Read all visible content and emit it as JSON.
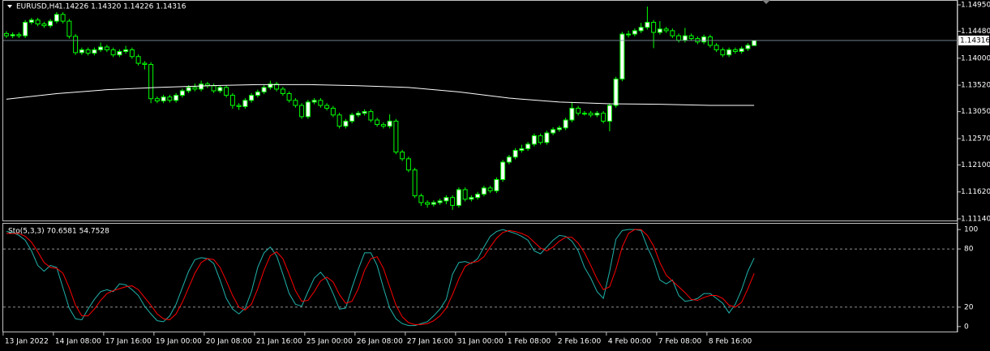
{
  "chart_data": {
    "type": "candlestick",
    "title": "EURUSD,H4",
    "ohlc_text": "1.14226 1.14320 1.14226 1.14316",
    "last_price": 1.14316,
    "up_color": "#ffffff",
    "down_color": "#000000",
    "outline_color": "#00ff00",
    "ylim": [
      1.11111,
      1.15008
    ],
    "yticks": [
      {
        "value": 1.1495,
        "label": "1.14950"
      },
      {
        "value": 1.1448,
        "label": "1.14480"
      },
      {
        "value": 1.14,
        "label": "1.14000"
      },
      {
        "value": 1.1352,
        "label": "1.13520"
      },
      {
        "value": 1.1305,
        "label": "1.13050"
      },
      {
        "value": 1.1257,
        "label": "1.12570"
      },
      {
        "value": 1.121,
        "label": "1.12100"
      },
      {
        "value": 1.1162,
        "label": "1.11620"
      },
      {
        "value": 1.1114,
        "label": "1.11140"
      }
    ],
    "categories": [
      "13 Jan 2022",
      null,
      null,
      null,
      null,
      null,
      null,
      null,
      "14 Jan 08:00",
      null,
      null,
      null,
      null,
      null,
      null,
      null,
      "17 Jan 16:00",
      null,
      null,
      null,
      null,
      null,
      null,
      null,
      "19 Jan 00:00",
      null,
      null,
      null,
      null,
      null,
      null,
      null,
      "20 Jan 08:00",
      null,
      null,
      null,
      null,
      null,
      null,
      null,
      "21 Jan 16:00",
      null,
      null,
      null,
      null,
      null,
      null,
      null,
      "25 Jan 00:00",
      null,
      null,
      null,
      null,
      null,
      null,
      null,
      "26 Jan 08:00",
      null,
      null,
      null,
      null,
      null,
      null,
      null,
      "27 Jan 16:00",
      null,
      null,
      null,
      null,
      null,
      null,
      null,
      "31 Jan 00:00",
      null,
      null,
      null,
      null,
      null,
      null,
      null,
      "1 Feb 08:00",
      null,
      null,
      null,
      null,
      null,
      null,
      null,
      "2 Feb 16:00",
      null,
      null,
      null,
      null,
      null,
      null,
      null,
      "4 Feb 00:00",
      null,
      null,
      null,
      null,
      null,
      null,
      null,
      "7 Feb 08:00",
      null,
      null,
      null,
      null,
      null,
      null,
      null,
      "8 Feb 16:00",
      null,
      null,
      null,
      null,
      null,
      null,
      null
    ],
    "open": [
      1.1444,
      1.144,
      1.1442,
      1.144,
      1.1464,
      1.1468,
      1.1461,
      1.1458,
      1.1466,
      1.1478,
      1.1466,
      1.1439,
      1.141,
      1.1415,
      1.1409,
      1.1415,
      1.142,
      1.1415,
      1.1406,
      1.1412,
      1.1415,
      1.1403,
      1.1391,
      1.1389,
      1.1328,
      1.1324,
      1.1331,
      1.1325,
      1.1334,
      1.1342,
      1.1348,
      1.1345,
      1.1354,
      1.1351,
      1.1342,
      1.1348,
      1.1334,
      1.1316,
      1.1314,
      1.1325,
      1.1334,
      1.134,
      1.1348,
      1.1354,
      1.1345,
      1.1337,
      1.1325,
      1.1316,
      1.1296,
      1.1322,
      1.1325,
      1.1316,
      1.1311,
      1.1299,
      1.1279,
      1.1288,
      1.1299,
      1.1302,
      1.1305,
      1.129,
      1.1282,
      1.1279,
      1.1288,
      1.1233,
      1.1221,
      1.1201,
      1.1155,
      1.1143,
      1.114,
      1.1143,
      1.1146,
      1.1152,
      1.1138,
      1.1166,
      1.1149,
      1.1152,
      1.1158,
      1.1169,
      1.1164,
      1.1184,
      1.1215,
      1.1224,
      1.1236,
      1.1239,
      1.1247,
      1.1262,
      1.125,
      1.1267,
      1.1273,
      1.1276,
      1.129,
      1.1311,
      1.1302,
      1.1302,
      1.1299,
      1.1302,
      1.1288,
      1.1316,
      1.1363,
      1.1443,
      1.1443,
      1.1449,
      1.1455,
      1.1464,
      1.1446,
      1.1452,
      1.1449,
      1.144,
      1.1432,
      1.144,
      1.1435,
      1.1429,
      1.1438,
      1.1423,
      1.1415,
      1.1406,
      1.1415,
      1.1412,
      1.1417,
      1.14226
    ],
    "high": [
      1.1448,
      1.1446,
      1.1446,
      1.1468,
      1.1472,
      1.1472,
      1.1465,
      1.147,
      1.1482,
      1.1482,
      1.147,
      1.1443,
      1.1419,
      1.1419,
      1.1419,
      1.1428,
      1.1424,
      1.1419,
      1.1416,
      1.1422,
      1.1419,
      1.1407,
      1.1395,
      1.1393,
      1.1332,
      1.1335,
      1.1335,
      1.1338,
      1.1346,
      1.1352,
      1.1355,
      1.136,
      1.1358,
      1.1355,
      1.1352,
      1.1352,
      1.1338,
      1.132,
      1.1329,
      1.1338,
      1.1344,
      1.1352,
      1.136,
      1.1358,
      1.1349,
      1.1341,
      1.1329,
      1.132,
      1.1326,
      1.1329,
      1.1329,
      1.132,
      1.1315,
      1.1303,
      1.1292,
      1.1303,
      1.1306,
      1.1309,
      1.1309,
      1.1294,
      1.1286,
      1.13,
      1.1292,
      1.1237,
      1.1225,
      1.1205,
      1.1159,
      1.1147,
      1.1147,
      1.115,
      1.1156,
      1.1156,
      1.117,
      1.117,
      1.1156,
      1.1162,
      1.1173,
      1.1173,
      1.1188,
      1.1219,
      1.1228,
      1.124,
      1.1246,
      1.1251,
      1.1266,
      1.1266,
      1.1271,
      1.1277,
      1.128,
      1.1294,
      1.1322,
      1.1315,
      1.1306,
      1.1306,
      1.1306,
      1.1306,
      1.132,
      1.1367,
      1.1447,
      1.1449,
      1.1453,
      1.1463,
      1.1492,
      1.1468,
      1.1466,
      1.1456,
      1.1453,
      1.1444,
      1.1454,
      1.1444,
      1.1439,
      1.1442,
      1.1442,
      1.1427,
      1.1419,
      1.1419,
      1.1419,
      1.1421,
      1.1427,
      1.1432
    ],
    "low": [
      1.1436,
      1.1436,
      1.1436,
      1.1436,
      1.146,
      1.1457,
      1.1454,
      1.1454,
      1.1462,
      1.1462,
      1.1435,
      1.1406,
      1.1406,
      1.1405,
      1.1405,
      1.1411,
      1.1411,
      1.1402,
      1.1402,
      1.1408,
      1.1399,
      1.1387,
      1.138,
      1.132,
      1.132,
      1.132,
      1.1321,
      1.1321,
      1.133,
      1.1338,
      1.1341,
      1.1341,
      1.1347,
      1.1338,
      1.1338,
      1.133,
      1.131,
      1.1308,
      1.131,
      1.1321,
      1.133,
      1.1336,
      1.1344,
      1.1341,
      1.1333,
      1.1321,
      1.1312,
      1.1292,
      1.1292,
      1.1318,
      1.1312,
      1.1307,
      1.1295,
      1.1275,
      1.1275,
      1.1284,
      1.1295,
      1.1298,
      1.1286,
      1.1278,
      1.1275,
      1.1275,
      1.1229,
      1.1217,
      1.1197,
      1.1151,
      1.1137,
      1.1134,
      1.1136,
      1.1139,
      1.114,
      1.113,
      1.1134,
      1.1145,
      1.1145,
      1.1148,
      1.1154,
      1.116,
      1.116,
      1.118,
      1.1211,
      1.122,
      1.1232,
      1.1235,
      1.1243,
      1.1246,
      1.1246,
      1.1263,
      1.1269,
      1.1272,
      1.1286,
      1.1298,
      1.1298,
      1.1295,
      1.1295,
      1.1284,
      1.127,
      1.1312,
      1.1359,
      1.1437,
      1.1439,
      1.1445,
      1.1451,
      1.1418,
      1.1442,
      1.1445,
      1.1436,
      1.1428,
      1.1428,
      1.1431,
      1.1425,
      1.1425,
      1.1419,
      1.1411,
      1.1402,
      1.1402,
      1.1408,
      1.1408,
      1.1413,
      1.14226
    ],
    "close": [
      1.144,
      1.1442,
      1.144,
      1.1464,
      1.1468,
      1.1461,
      1.1458,
      1.1466,
      1.1478,
      1.1466,
      1.1439,
      1.141,
      1.1415,
      1.1409,
      1.1415,
      1.142,
      1.1415,
      1.1406,
      1.1412,
      1.1415,
      1.1403,
      1.1391,
      1.1389,
      1.1328,
      1.1324,
      1.1331,
      1.1325,
      1.1334,
      1.1342,
      1.1348,
      1.1345,
      1.1354,
      1.1351,
      1.1342,
      1.1348,
      1.1334,
      1.1316,
      1.1314,
      1.1325,
      1.1334,
      1.134,
      1.1348,
      1.1354,
      1.1345,
      1.1337,
      1.1325,
      1.1316,
      1.1296,
      1.1322,
      1.1325,
      1.1316,
      1.1311,
      1.1299,
      1.1279,
      1.1288,
      1.1299,
      1.1302,
      1.1305,
      1.129,
      1.1282,
      1.1279,
      1.1288,
      1.1233,
      1.1221,
      1.1201,
      1.1155,
      1.1143,
      1.114,
      1.1143,
      1.1146,
      1.1152,
      1.1138,
      1.1166,
      1.1149,
      1.1152,
      1.1158,
      1.1169,
      1.1164,
      1.1184,
      1.1215,
      1.1224,
      1.1236,
      1.1239,
      1.1247,
      1.1262,
      1.125,
      1.1267,
      1.1273,
      1.1276,
      1.129,
      1.1311,
      1.1302,
      1.1302,
      1.1299,
      1.1302,
      1.1288,
      1.1316,
      1.1363,
      1.1443,
      1.1443,
      1.1449,
      1.1455,
      1.1464,
      1.1446,
      1.1452,
      1.1449,
      1.144,
      1.1432,
      1.144,
      1.1435,
      1.1429,
      1.1438,
      1.1423,
      1.1415,
      1.1406,
      1.1415,
      1.1412,
      1.1417,
      1.1423,
      1.14316
    ],
    "moving_average": {
      "color": "#ffffff",
      "index": [
        0,
        8,
        16,
        24,
        32,
        40,
        48,
        56,
        64,
        72,
        80,
        88,
        96,
        104,
        112,
        119
      ],
      "values": [
        1.1327,
        1.1337,
        1.1344,
        1.1348,
        1.1351,
        1.1353,
        1.1353,
        1.1351,
        1.1348,
        1.134,
        1.1329,
        1.1322,
        1.1319,
        1.1318,
        1.1316,
        1.1316
      ]
    },
    "indicator": {
      "label": "Sto(5,3,3) 70.6581 54.7528",
      "ylim": [
        -6,
        106
      ],
      "yticks": [
        0,
        20,
        80,
        100
      ],
      "levels": [
        20,
        80
      ],
      "series": [
        {
          "color": "#20b2aa",
          "values": [
            98,
            97,
            94,
            89,
            78,
            63,
            57,
            63,
            61,
            40,
            19,
            8,
            7,
            18,
            28,
            36,
            38,
            36,
            44,
            43,
            38,
            32,
            21,
            13,
            6,
            5,
            11,
            23,
            40,
            57,
            69,
            71,
            70,
            65,
            48,
            29,
            18,
            13,
            19,
            36,
            61,
            76,
            82,
            73,
            54,
            34,
            23,
            21,
            36,
            50,
            56,
            48,
            34,
            18,
            19,
            40,
            59,
            76,
            76,
            63,
            40,
            19,
            8,
            3,
            1,
            1,
            3,
            5,
            11,
            18,
            28,
            54,
            66,
            67,
            65,
            70,
            82,
            93,
            98,
            100,
            98,
            96,
            93,
            89,
            78,
            75,
            82,
            89,
            94,
            93,
            88,
            78,
            61,
            50,
            36,
            29,
            57,
            90,
            99,
            100,
            100,
            99,
            82,
            68,
            48,
            44,
            48,
            32,
            26,
            27,
            29,
            34,
            34,
            29,
            24,
            14,
            23,
            38,
            57,
            70.6581
          ]
        },
        {
          "color": "#ff0000",
          "values": [
            96,
            96,
            96,
            93,
            87,
            77,
            66,
            61,
            60,
            55,
            40,
            22,
            11,
            11,
            18,
            27,
            34,
            37,
            39,
            41,
            42,
            38,
            30,
            22,
            13,
            8,
            7,
            13,
            25,
            40,
            55,
            66,
            70,
            69,
            61,
            47,
            32,
            20,
            17,
            23,
            39,
            58,
            73,
            77,
            70,
            54,
            37,
            26,
            27,
            36,
            47,
            51,
            46,
            33,
            24,
            26,
            39,
            58,
            70,
            72,
            60,
            41,
            22,
            10,
            4,
            2,
            2,
            3,
            6,
            11,
            19,
            33,
            49,
            62,
            66,
            67,
            72,
            82,
            91,
            97,
            99,
            98,
            96,
            93,
            87,
            81,
            78,
            82,
            88,
            92,
            92,
            86,
            76,
            63,
            49,
            38,
            41,
            59,
            82,
            96,
            100,
            100,
            94,
            83,
            66,
            53,
            47,
            41,
            35,
            28,
            27,
            30,
            32,
            32,
            29,
            22,
            20,
            25,
            39,
            54.7528
          ]
        }
      ]
    }
  }
}
